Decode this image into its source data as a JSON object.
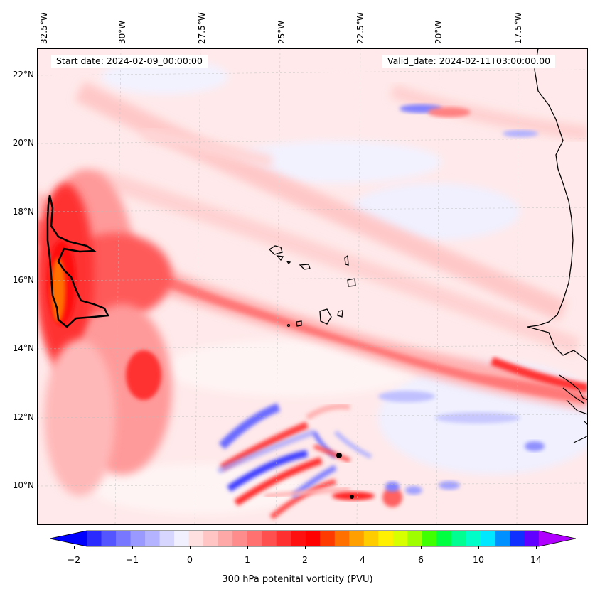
{
  "map": {
    "start_date_label": "Start date: 2024-02-09_00:00:00",
    "valid_date_label": "Valid_date: 2024-02-11T03:00:00.00",
    "longitude_labels": [
      "32.5°W",
      "30°W",
      "27.5°W",
      "25°W",
      "22.5°W",
      "20°W",
      "17.5°W"
    ],
    "latitude_labels": [
      "22°N",
      "20°N",
      "18°N",
      "16°N",
      "14°N",
      "12°N",
      "10°N"
    ],
    "extent": {
      "lon_min": -33.0,
      "lon_max": -15.8,
      "lat_min": 8.9,
      "lat_max": 22.8
    },
    "background_color": "#ffe9ea",
    "coastline_color": "#000000"
  },
  "colorbar": {
    "title": "300 hPa potenital vorticity (PVU)",
    "tick_labels": [
      "−2",
      "−1",
      "0",
      "1",
      "2",
      "4",
      "6",
      "10",
      "14"
    ],
    "colors": [
      "#0000ff",
      "#2a2aff",
      "#5555ff",
      "#7777ff",
      "#9999ff",
      "#b3b3ff",
      "#d6d6ff",
      "#f0f0ff",
      "#ffe0e0",
      "#ffc4c4",
      "#ffa8a8",
      "#ff8c8c",
      "#ff7070",
      "#ff5050",
      "#ff3030",
      "#ff1010",
      "#ff0000",
      "#ff3a00",
      "#ff7000",
      "#ffa000",
      "#ffcc00",
      "#ffef00",
      "#d8ff00",
      "#9fff00",
      "#40ff00",
      "#00ff40",
      "#00ff90",
      "#00ffc8",
      "#00e8ff",
      "#0090ff",
      "#1030ff",
      "#6000ff",
      "#b000ff"
    ]
  }
}
